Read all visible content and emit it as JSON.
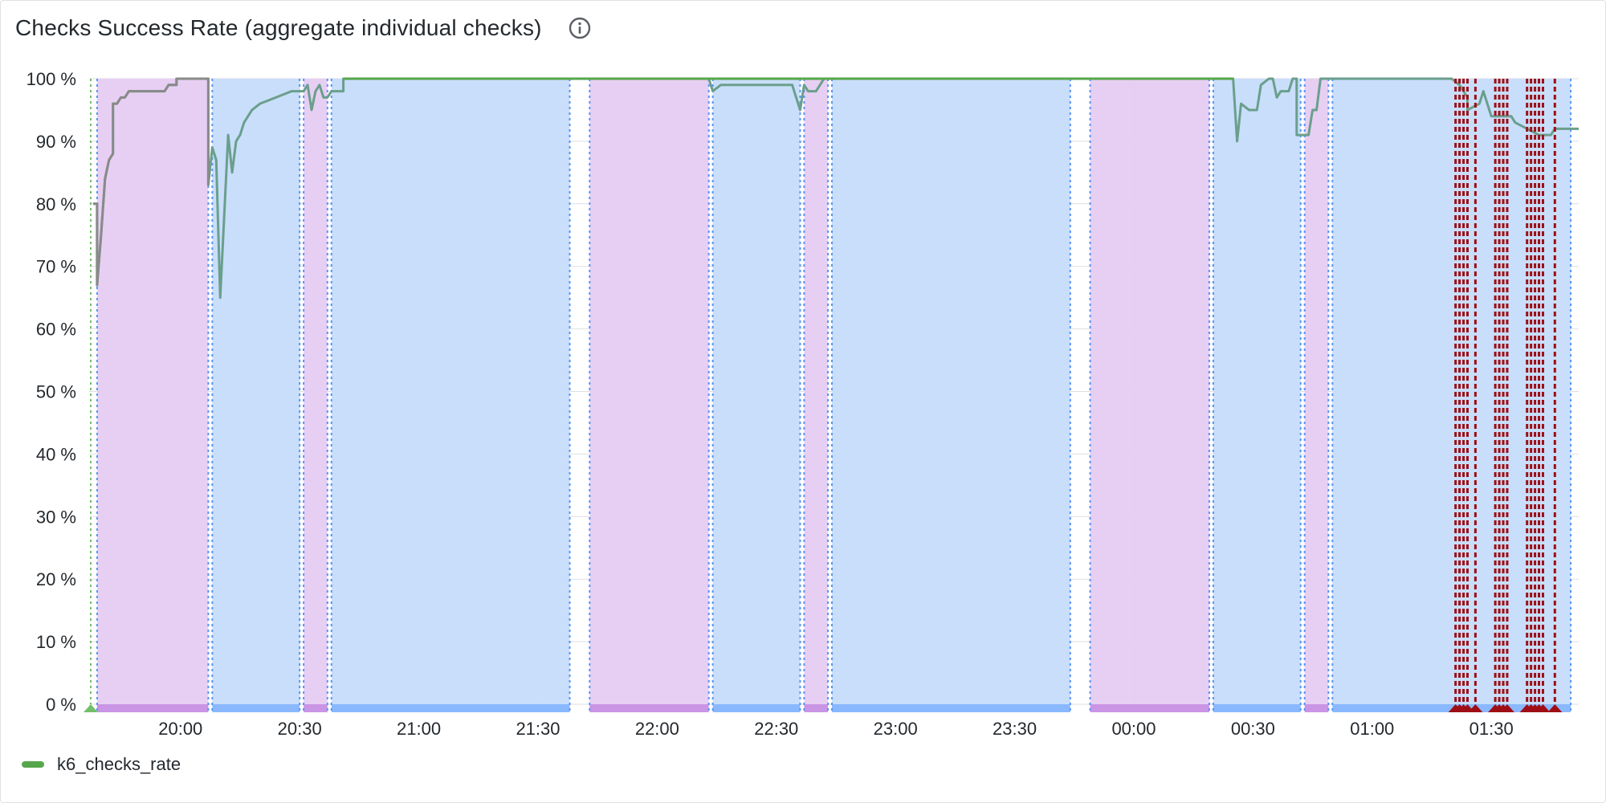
{
  "panel": {
    "title": "Checks Success Rate (aggregate individual checks)",
    "info_icon": "info-icon"
  },
  "colors": {
    "line": "#6a9f8c",
    "line_early": "#8a8a8a",
    "legend": "#56a64b",
    "purple_band": "#e6ccf2",
    "purple_bar": "#ca95e5",
    "blue_band": "#c6dcfb",
    "blue_bar": "#8ab8ff",
    "boundary_blue": "#5794f2",
    "boundary_green": "#73bf69",
    "alert_red": "#9e0e14",
    "grid": "#dcdfe3"
  },
  "legend": {
    "label": "k6_checks_rate"
  },
  "chart_data": {
    "type": "line",
    "title": "Checks Success Rate (aggregate individual checks)",
    "xlabel": "",
    "ylabel": "",
    "ylim": [
      0,
      100
    ],
    "y_unit": "%",
    "yticks": [
      0,
      10,
      20,
      30,
      40,
      50,
      60,
      70,
      80,
      90,
      100
    ],
    "ytick_labels": [
      "0 %",
      "10 %",
      "20 %",
      "30 %",
      "40 %",
      "50 %",
      "60 %",
      "70 %",
      "80 %",
      "90 %",
      "100 %"
    ],
    "x_range": [
      "19:37",
      "01:52"
    ],
    "xticks": [
      "20:00",
      "20:30",
      "21:00",
      "21:30",
      "22:00",
      "22:30",
      "23:00",
      "23:30",
      "00:00",
      "00:30",
      "01:00",
      "01:30"
    ],
    "grid": true,
    "legend_position": "bottom-left",
    "series": [
      {
        "name": "k6_checks_rate",
        "points": [
          [
            "19:38",
            80
          ],
          [
            "19:39",
            80
          ],
          [
            "19:39",
            67
          ],
          [
            "19:40",
            75
          ],
          [
            "19:41",
            84
          ],
          [
            "19:42",
            87
          ],
          [
            "19:43",
            88
          ],
          [
            "19:43",
            96
          ],
          [
            "19:44",
            96
          ],
          [
            "19:45",
            97
          ],
          [
            "19:46",
            97
          ],
          [
            "19:47",
            98
          ],
          [
            "19:52",
            98
          ],
          [
            "19:56",
            98
          ],
          [
            "19:57",
            99
          ],
          [
            "19:59",
            99
          ],
          [
            "19:59",
            100
          ],
          [
            "20:05",
            100
          ],
          [
            "20:07",
            100
          ],
          [
            "20:07",
            83
          ],
          [
            "20:08",
            89
          ],
          [
            "20:09",
            87
          ],
          [
            "20:10",
            65
          ],
          [
            "20:12",
            91
          ],
          [
            "20:13",
            85
          ],
          [
            "20:14",
            90
          ],
          [
            "20:15",
            91
          ],
          [
            "20:16",
            93
          ],
          [
            "20:17",
            94
          ],
          [
            "20:18",
            95
          ],
          [
            "20:20",
            96
          ],
          [
            "20:24",
            97
          ],
          [
            "20:28",
            98
          ],
          [
            "20:31",
            98
          ],
          [
            "20:32",
            99
          ],
          [
            "20:33",
            95
          ],
          [
            "20:34",
            98
          ],
          [
            "20:35",
            99
          ],
          [
            "20:36",
            97
          ],
          [
            "20:37",
            97
          ],
          [
            "20:38",
            98
          ],
          [
            "20:41",
            98
          ],
          [
            "20:41",
            100
          ],
          [
            "21:00",
            100
          ],
          [
            "21:30",
            100
          ],
          [
            "22:00",
            100
          ],
          [
            "22:13",
            100
          ],
          [
            "22:14",
            98
          ],
          [
            "22:16",
            99
          ],
          [
            "22:30",
            99
          ],
          [
            "22:34",
            99
          ],
          [
            "22:35",
            97
          ],
          [
            "22:36",
            95
          ],
          [
            "22:37",
            99
          ],
          [
            "22:38",
            98
          ],
          [
            "22:39",
            98
          ],
          [
            "22:40",
            98
          ],
          [
            "22:41",
            99
          ],
          [
            "22:42",
            100
          ],
          [
            "23:00",
            100
          ],
          [
            "23:30",
            100
          ],
          [
            "00:00",
            100
          ],
          [
            "00:25",
            100
          ],
          [
            "00:26",
            90
          ],
          [
            "00:27",
            96
          ],
          [
            "00:29",
            95
          ],
          [
            "00:31",
            95
          ],
          [
            "00:32",
            99
          ],
          [
            "00:34",
            100
          ],
          [
            "00:35",
            100
          ],
          [
            "00:36",
            97
          ],
          [
            "00:37",
            98
          ],
          [
            "00:39",
            98
          ],
          [
            "00:40",
            100
          ],
          [
            "00:41",
            100
          ],
          [
            "00:41",
            91
          ],
          [
            "00:44",
            91
          ],
          [
            "00:45",
            95
          ],
          [
            "00:46",
            95
          ],
          [
            "00:47",
            100
          ],
          [
            "01:00",
            100
          ],
          [
            "01:20",
            100
          ],
          [
            "01:22",
            99
          ],
          [
            "01:24",
            97
          ],
          [
            "01:24",
            95
          ],
          [
            "01:27",
            96
          ],
          [
            "01:28",
            98
          ],
          [
            "01:29",
            96
          ],
          [
            "01:30",
            94
          ],
          [
            "01:35",
            94
          ],
          [
            "01:36",
            93
          ],
          [
            "01:39",
            92
          ],
          [
            "01:42",
            91
          ],
          [
            "01:45",
            91
          ],
          [
            "01:46",
            92
          ],
          [
            "01:52",
            92
          ]
        ]
      }
    ],
    "regions": [
      {
        "start": "19:39",
        "end": "20:07",
        "color": "purple"
      },
      {
        "start": "20:08",
        "end": "20:30",
        "color": "blue"
      },
      {
        "start": "20:31",
        "end": "20:37",
        "color": "purple"
      },
      {
        "start": "20:38",
        "end": "21:38",
        "color": "blue"
      },
      {
        "start": "21:43",
        "end": "22:13",
        "color": "purple"
      },
      {
        "start": "22:14",
        "end": "22:36",
        "color": "blue"
      },
      {
        "start": "22:37",
        "end": "22:43",
        "color": "purple"
      },
      {
        "start": "22:44",
        "end": "23:44",
        "color": "blue"
      },
      {
        "start": "23:49",
        "end": "00:19",
        "color": "purple"
      },
      {
        "start": "00:20",
        "end": "00:42",
        "color": "blue"
      },
      {
        "start": "00:43",
        "end": "00:49",
        "color": "purple"
      },
      {
        "start": "00:50",
        "end": "01:50",
        "color": "blue"
      }
    ],
    "alerts": [
      "01:21",
      "01:22",
      "01:23",
      "01:24",
      "01:26",
      "01:31",
      "01:32",
      "01:33",
      "01:34",
      "01:39",
      "01:40",
      "01:41",
      "01:42",
      "01:43",
      "01:46"
    ]
  }
}
